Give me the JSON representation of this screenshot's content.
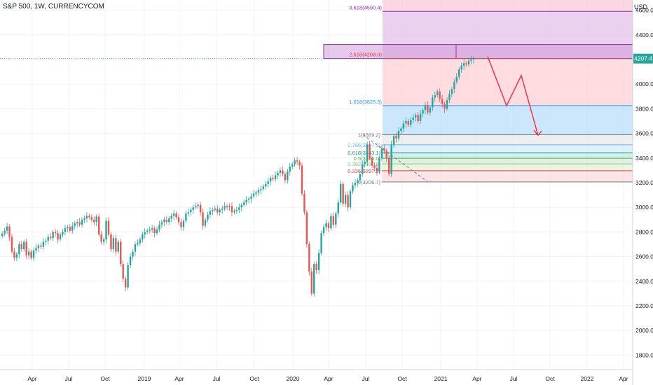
{
  "header": {
    "title": "S&P 500, 1W, CURRENCYCOM",
    "currency": "USD"
  },
  "chart_data": {
    "type": "candlestick",
    "interval": "1W",
    "symbol": "S&P 500",
    "source": "CURRENCYCOM",
    "y_axis": {
      "side": "right",
      "ylim": [
        1700,
        4900
      ],
      "ticks": [
        "1800.0",
        "2000.0",
        "2200.0",
        "2400.0",
        "2600.0",
        "2800.0",
        "3000.0",
        "3200.0",
        "3400.0",
        "3600.0",
        "3800.0",
        "4000.0",
        "4200.0",
        "4400.0",
        "4600.0"
      ],
      "last_price_label": "4207.4",
      "last_price": 4207.4
    },
    "x_axis": {
      "ticks": [
        "Apr",
        "Jul",
        "Oct",
        "2019",
        "Apr",
        "Jul",
        "Oct",
        "2020",
        "Apr",
        "Jul",
        "Oct",
        "2021",
        "Apr",
        "Jul",
        "Oct",
        "2022",
        "Apr"
      ]
    },
    "grid": true,
    "colors": {
      "up": "#26a69a",
      "down": "#ef5350",
      "arrow": "#f23645"
    },
    "fib_extension": {
      "levels": [
        {
          "label": "1.618(3825.5)",
          "value": 3825.5,
          "color": "#2196f3"
        },
        {
          "label": "2.618(4208.0)",
          "value": 4208.0,
          "color": "#f23645"
        },
        {
          "label": "3.618(4590.4)",
          "value": 4590.4,
          "color": "#9c27b0"
        }
      ]
    },
    "fib_retracement": {
      "levels": [
        {
          "label": "1(3589.2)",
          "value": 3589.2,
          "color": "#787b86"
        },
        {
          "label": "0.786(3507.3)",
          "value": 3507.3,
          "color": "#64b5f6"
        },
        {
          "label": "0.618(3443.1)",
          "value": 3443.1,
          "color": "#089981"
        },
        {
          "label": "0.5(3398.0)",
          "value": 3398.0,
          "color": "#4caf50"
        },
        {
          "label": "0.382(3352.8)",
          "value": 3352.8,
          "color": "#81c784"
        },
        {
          "label": "0.236(3297.2)",
          "value": 3297.2,
          "color": "#f23645"
        },
        {
          "label": "0(3206.7)",
          "value": 3206.7,
          "color": "#787b86"
        }
      ]
    },
    "weekly_closes": [
      2787,
      2810,
      2845,
      2760,
      2640,
      2590,
      2620,
      2700,
      2660,
      2720,
      2610,
      2640,
      2590,
      2650,
      2670,
      2690,
      2680,
      2720,
      2730,
      2760,
      2750,
      2800,
      2790,
      2740,
      2780,
      2800,
      2830,
      2840,
      2810,
      2850,
      2870,
      2880,
      2860,
      2900,
      2910,
      2930,
      2920,
      2900,
      2880,
      2925,
      2780,
      2720,
      2740,
      2890,
      2780,
      2660,
      2750,
      2640,
      2720,
      2540,
      2420,
      2350,
      2530,
      2600,
      2640,
      2700,
      2710,
      2740,
      2780,
      2800,
      2810,
      2820,
      2830,
      2790,
      2820,
      2860,
      2880,
      2900,
      2880,
      2910,
      2930,
      2950,
      2920,
      2880,
      2840,
      2890,
      2950,
      2960,
      2980,
      3000,
      3010,
      3020,
      2960,
      2850,
      2900,
      2940,
      2970,
      2980,
      2990,
      2960,
      2980,
      2990,
      3010,
      3000,
      3010,
      2960,
      2970,
      2980,
      3000,
      3020,
      3040,
      3060,
      3070,
      3090,
      3110,
      3120,
      3140,
      3150,
      3170,
      3190,
      3210,
      3240,
      3230,
      3260,
      3280,
      3300,
      3270,
      3220,
      3290,
      3330,
      3350,
      3380,
      3370,
      3340,
      3110,
      2960,
      2700,
      2480,
      2300,
      2540,
      2490,
      2630,
      2790,
      2840,
      2870,
      2830,
      2930,
      2860,
      2950,
      3040,
      3190,
      3030,
      3100,
      3000,
      3130,
      3180,
      3200,
      3220,
      3270,
      3350,
      3370,
      3510,
      3400,
      3340,
      3320,
      3290,
      3400,
      3480,
      3460,
      3400,
      3270,
      3510,
      3580,
      3560,
      3620,
      3640,
      3680,
      3700,
      3670,
      3710,
      3730,
      3750,
      3700,
      3760,
      3790,
      3830,
      3770,
      3810,
      3890,
      3910,
      3940,
      3880,
      3840,
      3800,
      3870,
      3920,
      3960,
      4020,
      4060,
      4120,
      4150,
      4170,
      4160,
      4190,
      4200,
      4207
    ]
  }
}
